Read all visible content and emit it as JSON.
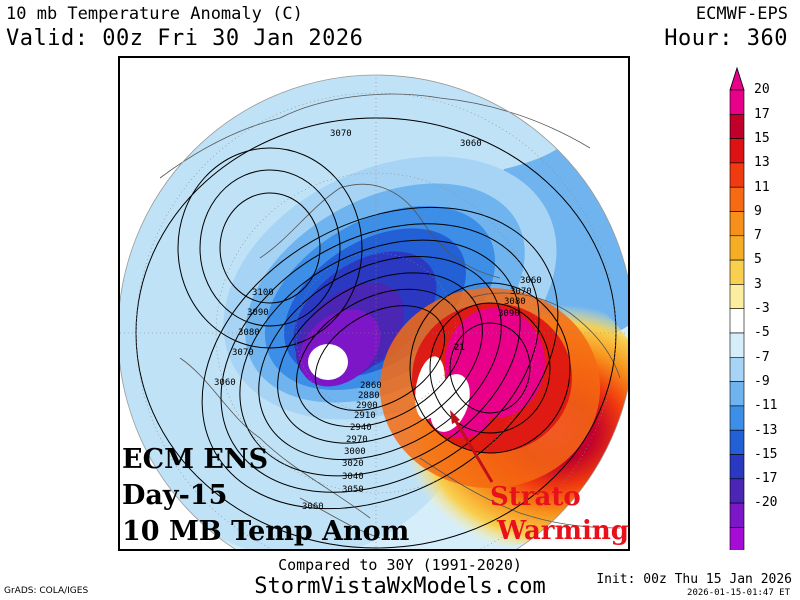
{
  "header": {
    "title": "10 mb Temperature Anomaly (C)",
    "valid": "Valid: 00z Fri 30 Jan 2026",
    "model": "ECMWF-EPS",
    "hour": "Hour: 360"
  },
  "overlay": {
    "line1": "ECM ENS",
    "line2": "Day-15",
    "line3": "10 MB Temp Anom",
    "strato_1": "Strato",
    "strato_2": "Warming"
  },
  "footer": {
    "compared": "Compared to 30Y (1991-2020)",
    "site": "StormVistaWxModels.com",
    "grads": "GrADS: COLA/IGES",
    "init": "Init: 00z Thu 15 Jan 2026",
    "stamp": "2026-01-15-01:47 ET"
  },
  "colorbar": {
    "labels": [
      "20",
      "17",
      "15",
      "13",
      "11",
      "9",
      "7",
      "5",
      "3",
      "-3",
      "-5",
      "-7",
      "-9",
      "-11",
      "-13",
      "-15",
      "-17",
      "-20"
    ],
    "colors": [
      "#e8008a",
      "#c0002a",
      "#dd1313",
      "#f03a0f",
      "#f56a12",
      "#f7901a",
      "#f6ad26",
      "#f8cf4e",
      "#fbeea0",
      "#ffffff",
      "#d6eefa",
      "#a7d4f4",
      "#6fb4ee",
      "#3d8ee6",
      "#2360d6",
      "#2a38c2",
      "#4b25b4",
      "#7c16c6",
      "#a50cd6"
    ]
  },
  "contours": {
    "labels": [
      "3070",
      "3060",
      "3100",
      "3090",
      "3080",
      "3070",
      "3060",
      "3060",
      "3070",
      "3080",
      "3090",
      "21",
      "2860",
      "2880",
      "2900",
      "2910",
      "2940",
      "2970",
      "3000",
      "3020",
      "3040",
      "3050",
      "3060"
    ]
  }
}
